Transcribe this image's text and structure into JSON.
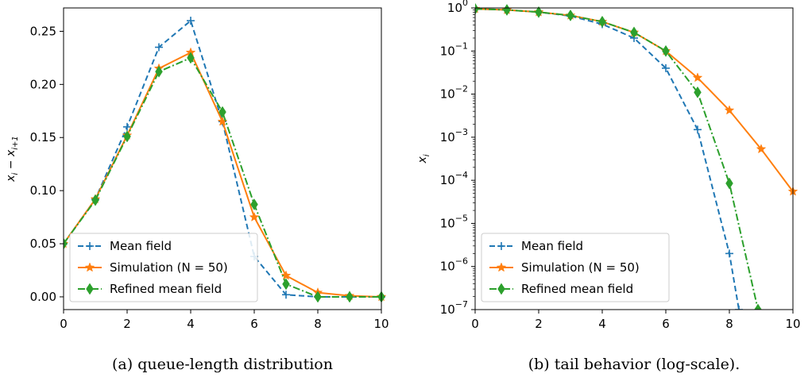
{
  "captions": {
    "a": "(a) queue-length distribution",
    "b": "(b) tail behavior (log-scale)."
  },
  "chart_data": [
    {
      "type": "line",
      "title": "",
      "xlabel": "",
      "ylabel": "x_i − x_{i+1}",
      "xlim": [
        0,
        10
      ],
      "ylim": [
        -0.012,
        0.272
      ],
      "yscale": "linear",
      "xticks": [
        0,
        2,
        4,
        6,
        8,
        10
      ],
      "yticks": [
        0.0,
        0.05,
        0.1,
        0.15,
        0.2,
        0.25
      ],
      "ytick_labels": [
        "0.00",
        "0.05",
        "0.10",
        "0.15",
        "0.20",
        "0.25"
      ],
      "grid": false,
      "legend_position": "bottom-left",
      "series": [
        {
          "name": "Mean field",
          "color": "#1f77b4",
          "linestyle": "dashed",
          "marker": "plus",
          "x": [
            0,
            1,
            2,
            3,
            4,
            5,
            6,
            7,
            8,
            9,
            10
          ],
          "y": [
            0.05,
            0.092,
            0.16,
            0.235,
            0.26,
            0.165,
            0.038,
            0.002,
            0.0,
            0.0,
            0.0
          ]
        },
        {
          "name": "Simulation (N = 50)",
          "color": "#ff7f0e",
          "linestyle": "solid",
          "marker": "star",
          "x": [
            0,
            1,
            2,
            3,
            4,
            5,
            6,
            7,
            8,
            9,
            10
          ],
          "y": [
            0.05,
            0.092,
            0.152,
            0.215,
            0.23,
            0.165,
            0.075,
            0.02,
            0.004,
            0.001,
            0.0
          ]
        },
        {
          "name": "Refined mean field",
          "color": "#2ca02c",
          "linestyle": "dashdot",
          "marker": "diamond",
          "x": [
            0,
            1,
            2,
            3,
            4,
            5,
            6,
            7,
            8,
            9,
            10
          ],
          "y": [
            0.05,
            0.091,
            0.151,
            0.212,
            0.225,
            0.174,
            0.087,
            0.012,
            0.0,
            0.0,
            0.0
          ]
        }
      ]
    },
    {
      "type": "line",
      "title": "",
      "xlabel": "",
      "ylabel": "x_i",
      "xlim": [
        0,
        10
      ],
      "ylim": [
        1e-07,
        1
      ],
      "yscale": "log",
      "xticks": [
        0,
        2,
        4,
        6,
        8,
        10
      ],
      "yticks": [
        1e-07,
        1e-06,
        1e-05,
        0.0001,
        0.001,
        0.01,
        0.1,
        1
      ],
      "ytick_labels": [
        {
          "base": "10",
          "exp": "−7"
        },
        {
          "base": "10",
          "exp": "−6"
        },
        {
          "base": "10",
          "exp": "−5"
        },
        {
          "base": "10",
          "exp": "−4"
        },
        {
          "base": "10",
          "exp": "−3"
        },
        {
          "base": "10",
          "exp": "−2"
        },
        {
          "base": "10",
          "exp": "−1"
        },
        {
          "base": "10",
          "exp": "0"
        }
      ],
      "grid": false,
      "legend_position": "bottom-left",
      "series": [
        {
          "name": "Mean field",
          "color": "#1f77b4",
          "linestyle": "dashed",
          "marker": "plus",
          "x": [
            0,
            1,
            2,
            3,
            4,
            5,
            6,
            7,
            8,
            8.3
          ],
          "y": [
            0.95,
            0.9,
            0.8,
            0.65,
            0.42,
            0.2,
            0.04,
            0.0015,
            2e-06,
            1e-07
          ]
        },
        {
          "name": "Simulation (N = 50)",
          "color": "#ff7f0e",
          "linestyle": "solid",
          "marker": "star",
          "x": [
            0,
            1,
            2,
            3,
            4,
            5,
            6,
            7,
            8,
            9,
            10
          ],
          "y": [
            0.95,
            0.9,
            0.8,
            0.67,
            0.48,
            0.27,
            0.1,
            0.024,
            0.0042,
            0.00053,
            5.5e-05
          ]
        },
        {
          "name": "Refined mean field",
          "color": "#2ca02c",
          "linestyle": "dashdot",
          "marker": "diamond",
          "x": [
            0,
            1,
            2,
            3,
            4,
            5,
            6,
            7,
            8,
            8.9
          ],
          "y": [
            0.95,
            0.9,
            0.8,
            0.67,
            0.48,
            0.27,
            0.1,
            0.011,
            8.5e-05,
            1e-07
          ]
        }
      ]
    }
  ]
}
